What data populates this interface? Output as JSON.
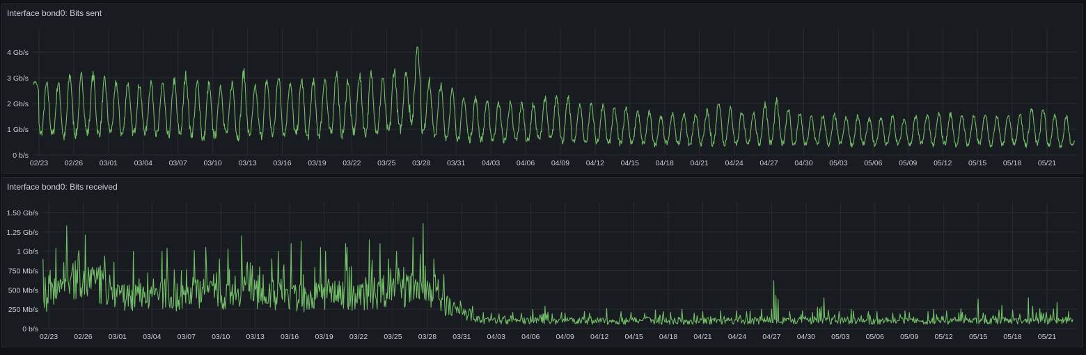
{
  "colors": {
    "line": "#73bf69",
    "grid": "#2a2c31",
    "bg": "#181b1f"
  },
  "chart_data": [
    {
      "type": "line",
      "title": "Interface bond0: Bits sent",
      "unit": "Gb/s",
      "ylim": [
        0,
        4.4
      ],
      "y_ticks": [
        {
          "v": 0,
          "label": "0 b/s"
        },
        {
          "v": 1,
          "label": "1 Gb/s"
        },
        {
          "v": 2,
          "label": "2 Gb/s"
        },
        {
          "v": 3,
          "label": "3 Gb/s"
        },
        {
          "v": 4,
          "label": "4 Gb/s"
        }
      ],
      "x_ticks": [
        "02/23",
        "02/26",
        "03/01",
        "03/04",
        "03/07",
        "03/10",
        "03/13",
        "03/16",
        "03/19",
        "03/22",
        "03/25",
        "03/28",
        "03/31",
        "04/03",
        "04/06",
        "04/09",
        "04/12",
        "04/15",
        "04/18",
        "04/21",
        "04/24",
        "04/27",
        "04/30",
        "05/03",
        "05/06",
        "05/09",
        "05/12",
        "05/15",
        "05/18",
        "05/21"
      ],
      "x_start_date": "02/22",
      "series": [
        {
          "name": "bond0 sent",
          "daily_peak": [
            2.85,
            2.75,
            2.8,
            3.1,
            3.05,
            3.1,
            2.9,
            2.8,
            2.8,
            2.75,
            2.85,
            2.8,
            2.9,
            3.1,
            2.8,
            2.75,
            2.7,
            2.8,
            3.2,
            2.6,
            2.9,
            3.1,
            2.8,
            2.9,
            2.9,
            3.0,
            3.2,
            2.9,
            3.1,
            3.15,
            3.0,
            3.3,
            3.3,
            4.3,
            2.9,
            2.7,
            2.5,
            2.2,
            2.2,
            2.1,
            2.0,
            2.0,
            2.0,
            1.95,
            2.2,
            2.3,
            2.2,
            2.0,
            2.0,
            1.9,
            1.8,
            1.85,
            1.7,
            1.65,
            1.5,
            1.6,
            1.6,
            1.55,
            1.7,
            2.1,
            1.8,
            1.7,
            1.65,
            2.0,
            2.1,
            1.8,
            1.6,
            1.5,
            1.5,
            1.55,
            1.45,
            1.5,
            1.4,
            1.45,
            1.5,
            1.4,
            1.5,
            1.55,
            1.6,
            1.6,
            1.55,
            1.5,
            1.6,
            1.55,
            1.6,
            1.6,
            1.8,
            1.8,
            1.5,
            1.5,
            0.9
          ],
          "daily_trough": [
            2.4,
            0.85,
            0.8,
            0.7,
            0.8,
            0.85,
            0.8,
            0.9,
            0.8,
            0.85,
            0.9,
            0.8,
            0.75,
            0.85,
            0.8,
            0.6,
            0.75,
            0.85,
            0.7,
            0.8,
            0.75,
            0.8,
            0.85,
            0.8,
            0.7,
            0.8,
            0.85,
            0.8,
            0.9,
            0.85,
            0.9,
            0.9,
            1.0,
            1.4,
            0.9,
            0.8,
            0.7,
            0.65,
            0.6,
            0.6,
            0.6,
            0.55,
            0.6,
            0.55,
            0.6,
            0.6,
            0.55,
            0.5,
            0.5,
            0.5,
            0.45,
            0.45,
            0.45,
            0.45,
            0.4,
            0.45,
            0.45,
            0.4,
            0.45,
            0.45,
            0.45,
            0.45,
            0.4,
            0.45,
            0.45,
            0.45,
            0.4,
            0.4,
            0.45,
            0.4,
            0.45,
            0.4,
            0.45,
            0.4,
            0.4,
            0.45,
            0.4,
            0.45,
            0.4,
            0.45,
            0.4,
            0.4,
            0.45,
            0.4,
            0.4,
            0.45,
            0.4,
            0.45,
            0.4,
            0.35,
            0.4
          ]
        }
      ]
    },
    {
      "type": "line",
      "title": "Interface bond0: Bits received",
      "unit": "Mb/s",
      "ylim": [
        0,
        1500
      ],
      "y_ticks": [
        {
          "v": 0,
          "label": "0 b/s"
        },
        {
          "v": 250,
          "label": "250 Mb/s"
        },
        {
          "v": 500,
          "label": "500 Mb/s"
        },
        {
          "v": 750,
          "label": "750 Mb/s"
        },
        {
          "v": 1000,
          "label": "1 Gb/s"
        },
        {
          "v": 1250,
          "label": "1.25 Gb/s"
        },
        {
          "v": 1500,
          "label": "1.50 Gb/s"
        }
      ],
      "x_ticks": [
        "02/23",
        "02/26",
        "03/01",
        "03/04",
        "03/07",
        "03/10",
        "03/13",
        "03/16",
        "03/19",
        "03/22",
        "03/25",
        "03/28",
        "03/31",
        "04/03",
        "04/06",
        "04/09",
        "04/12",
        "04/15",
        "04/18",
        "04/21",
        "04/24",
        "04/27",
        "04/30",
        "05/03",
        "05/06",
        "05/09",
        "05/12",
        "05/15",
        "05/18",
        "05/21"
      ],
      "x_start_date": "02/22",
      "series": [
        {
          "name": "bond0 received",
          "daily_mean": [
            400,
            550,
            600,
            650,
            600,
            550,
            450,
            420,
            400,
            450,
            420,
            450,
            400,
            450,
            480,
            430,
            400,
            520,
            600,
            450,
            420,
            450,
            400,
            380,
            420,
            430,
            450,
            400,
            420,
            450,
            500,
            550,
            500,
            450,
            500,
            300,
            250,
            180,
            110,
            100,
            100,
            100,
            100,
            100,
            100,
            100,
            100,
            100,
            100,
            100,
            100,
            100,
            100,
            100,
            100,
            100,
            100,
            100,
            100,
            100,
            100,
            100,
            100,
            100,
            100,
            100,
            100,
            100,
            100,
            100,
            100,
            100,
            100,
            100,
            100,
            100,
            100,
            100,
            100,
            100,
            100,
            100,
            100,
            100,
            100,
            100,
            100,
            100,
            100,
            100,
            100
          ],
          "daily_max": [
            900,
            1040,
            1330,
            1010,
            1210,
            940,
            860,
            560,
            1000,
            720,
            1000,
            1040,
            750,
            1010,
            1050,
            900,
            1030,
            1200,
            860,
            800,
            900,
            1000,
            1100,
            1130,
            1050,
            1000,
            1100,
            1050,
            1150,
            1100,
            900,
            1000,
            1180,
            1360,
            900,
            700,
            330,
            290,
            210,
            200,
            190,
            210,
            200,
            250,
            290,
            210,
            200,
            220,
            200,
            260,
            220,
            210,
            200,
            240,
            220,
            210,
            250,
            200,
            220,
            230,
            230,
            220,
            230,
            250,
            620,
            220,
            230,
            210,
            400,
            220,
            250,
            230,
            220,
            220,
            200,
            230,
            210,
            220,
            250,
            230,
            260,
            250,
            380,
            240,
            300,
            240,
            400,
            260,
            340,
            220,
            150
          ]
        }
      ]
    }
  ]
}
